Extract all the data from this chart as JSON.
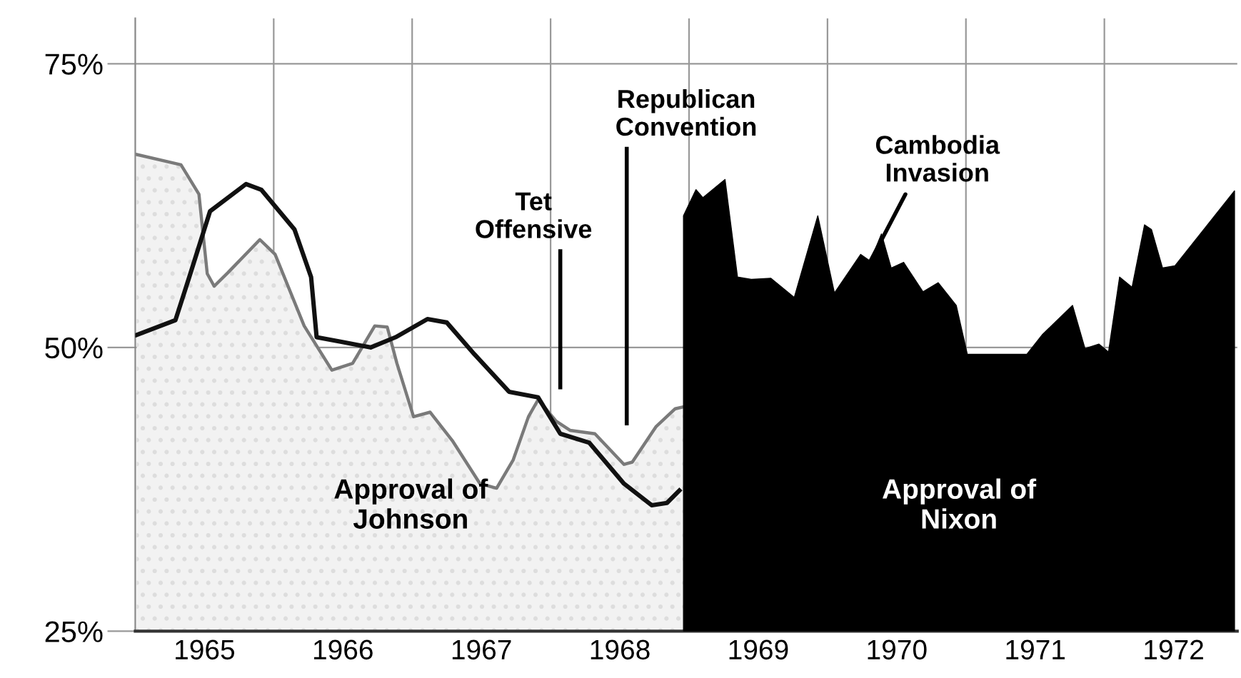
{
  "chart_data": {
    "type": "area",
    "xlim": [
      1965,
      1972.96
    ],
    "ylim": [
      25,
      79
    ],
    "yticks": [
      {
        "value": 25,
        "label": "25%"
      },
      {
        "value": 50,
        "label": "50%"
      },
      {
        "value": 75,
        "label": "75%"
      }
    ],
    "xticks": [
      {
        "value": 1965.5,
        "label": "1965"
      },
      {
        "value": 1966,
        "label": null
      },
      {
        "value": 1966.5,
        "label": "1966"
      },
      {
        "value": 1967,
        "label": null
      },
      {
        "value": 1967.5,
        "label": "1967"
      },
      {
        "value": 1968,
        "label": null
      },
      {
        "value": 1968.5,
        "label": "1968"
      },
      {
        "value": 1969,
        "label": null
      },
      {
        "value": 1969.5,
        "label": "1969"
      },
      {
        "value": 1970,
        "label": null
      },
      {
        "value": 1970.5,
        "label": "1970"
      },
      {
        "value": 1971,
        "label": null
      },
      {
        "value": 1971.5,
        "label": "1971"
      },
      {
        "value": 1972,
        "label": null
      },
      {
        "value": 1972.5,
        "label": "1972"
      }
    ],
    "grid": true,
    "series": [
      {
        "name": "Approval of\nJohnson",
        "color": "#7a7a7a",
        "x": [
          1965.01,
          1965.33,
          1965.46,
          1965.52,
          1965.57,
          1965.67,
          1965.9,
          1966.01,
          1966.22,
          1966.42,
          1966.57,
          1966.73,
          1966.82,
          1966.89,
          1967.01,
          1967.13,
          1967.29,
          1967.49,
          1967.61,
          1967.73,
          1967.84,
          1967.91,
          1968.04,
          1968.14,
          1968.32,
          1968.53,
          1968.59,
          1968.76,
          1968.9,
          1968.97
        ],
        "values": [
          67.0,
          66.1,
          63.5,
          56.5,
          55.4,
          56.6,
          59.5,
          58.2,
          51.9,
          48.0,
          48.6,
          51.9,
          51.8,
          48.6,
          43.9,
          44.3,
          41.8,
          38.0,
          37.6,
          40.1,
          43.9,
          45.4,
          43.5,
          42.7,
          42.4,
          39.7,
          39.9,
          43.0,
          44.6,
          44.8
        ]
      },
      {
        "type": "line",
        "color": "#111111",
        "x": [
          1965.01,
          1965.29,
          1965.39,
          1965.54,
          1965.8,
          1965.91,
          1966.15,
          1966.27,
          1966.31,
          1966.49,
          1966.7,
          1966.88,
          1967.11,
          1967.25,
          1967.45,
          1967.7,
          1967.91,
          1968.07,
          1968.28,
          1968.53,
          1968.73,
          1968.84,
          1968.93
        ],
        "values": [
          51.1,
          52.4,
          56.2,
          62.0,
          64.4,
          63.9,
          60.4,
          56.2,
          50.9,
          50.5,
          50.0,
          50.9,
          52.5,
          52.2,
          49.4,
          46.1,
          45.6,
          42.4,
          41.6,
          38.0,
          36.1,
          36.3,
          37.4
        ]
      },
      {
        "name": "Approval of\nNixon",
        "color": "#000000",
        "x": [
          1968.96,
          1969.05,
          1969.1,
          1969.26,
          1969.35,
          1969.45,
          1969.59,
          1969.76,
          1969.93,
          1970.05,
          1970.24,
          1970.31,
          1970.39,
          1970.46,
          1970.55,
          1970.69,
          1970.8,
          1970.93,
          1971.01,
          1971.44,
          1971.55,
          1971.77,
          1971.86,
          1971.96,
          1972.03,
          1972.11,
          1972.2,
          1972.29,
          1972.34,
          1972.42,
          1972.51,
          1972.94
        ],
        "values": [
          61.6,
          63.9,
          63.2,
          64.8,
          56.2,
          56.0,
          56.1,
          54.4,
          61.6,
          54.8,
          58.2,
          57.6,
          60.0,
          57.0,
          57.5,
          54.9,
          55.7,
          53.7,
          49.4,
          49.4,
          51.1,
          53.7,
          49.9,
          50.3,
          49.6,
          56.2,
          55.3,
          60.8,
          60.4,
          57.0,
          57.2,
          63.8
        ]
      }
    ],
    "ref_lines": [
      {
        "axis": "x",
        "value": 1968.07,
        "label": "Tet\nOffensive",
        "color": "#000000"
      },
      {
        "axis": "x",
        "value": 1968.55,
        "label": "Republican\nConvention",
        "color": "#000000"
      }
    ],
    "annotations": [
      {
        "text": "Cambodia\nInvasion",
        "x": 1970.31,
        "y": 57.6
      }
    ]
  }
}
